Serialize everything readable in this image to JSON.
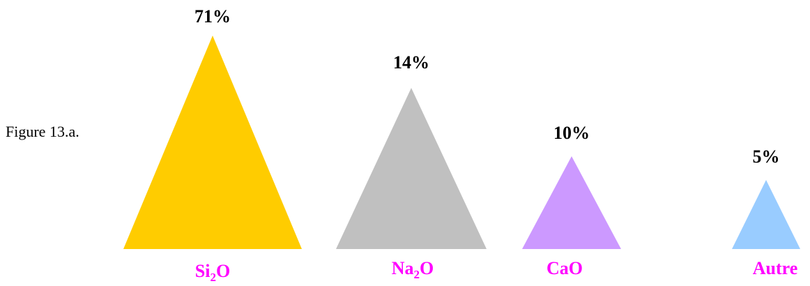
{
  "caption": "Figure 13.a.",
  "chart_data": {
    "type": "bar",
    "categories": [
      {
        "label": "Si",
        "sub": "2",
        "tail": "O"
      },
      {
        "label": "Na",
        "sub": "2",
        "tail": "O"
      },
      {
        "label": "CaO",
        "sub": "",
        "tail": ""
      },
      {
        "label": "Autre",
        "sub": "",
        "tail": ""
      }
    ],
    "values": [
      71,
      14,
      10,
      5
    ],
    "value_labels": [
      "71%",
      "14%",
      "10%",
      "5%"
    ],
    "colors": [
      "#FFCC00",
      "#C0C0C0",
      "#CC99FF",
      "#99CCFF"
    ],
    "label_color": "#FF00FF",
    "title": "",
    "xlabel": "",
    "ylabel": ""
  }
}
